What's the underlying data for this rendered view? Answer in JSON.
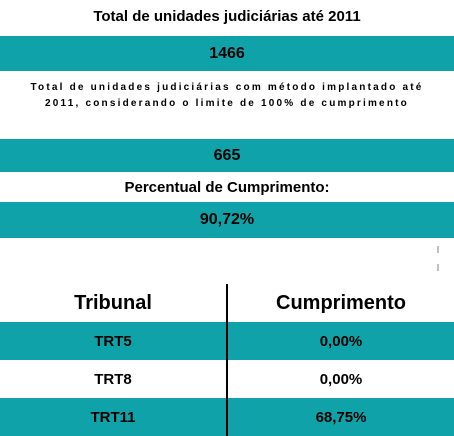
{
  "summary": {
    "total_units_label": "Total de unidades judiciárias até 2011",
    "total_units_value": "1466",
    "implanted_units_label": "Total de unidades judiciárias com método implantado até 2011, considerando o limite de 100% de cumprimento",
    "implanted_units_value": "665",
    "percent_label": "Percentual de Cumprimento:",
    "percent_value": "90,72%"
  },
  "table": {
    "headers": [
      "Tribunal",
      "Cumprimento"
    ],
    "rows": [
      {
        "tribunal": "TRT5",
        "cumprimento": "0,00%"
      },
      {
        "tribunal": "TRT8",
        "cumprimento": "0,00%"
      },
      {
        "tribunal": "TRT11",
        "cumprimento": "68,75%"
      }
    ]
  },
  "colors": {
    "band": "#0fa3a9",
    "text": "#000000",
    "background": "#ffffff"
  }
}
